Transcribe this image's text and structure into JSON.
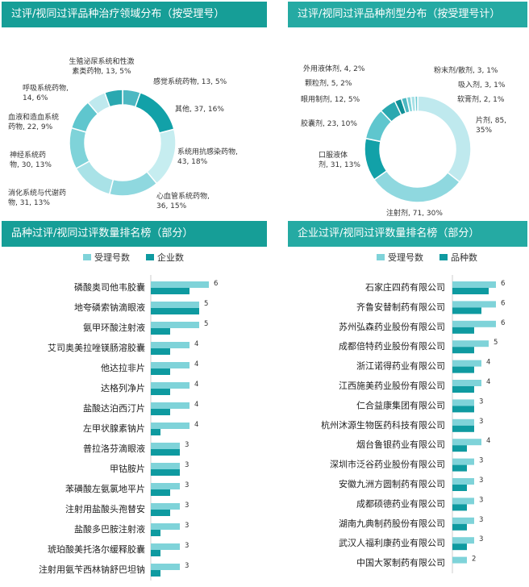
{
  "colors": {
    "header": "#169e97",
    "header_light": "#25aaa3",
    "light": "#7fd3d9",
    "dark": "#0e9aa0"
  },
  "panels": {
    "p1_title": "过评/视同过评品种治疗领域分布（按受理号）",
    "p2_title": "过评/视同过评品种剂型分布（按受理号计）",
    "p3_title": "品种过评/视同过评数量排名榜（部分）",
    "p4_title": "企业过评/视同过评数量排名榜（部分）"
  },
  "chart_data": [
    {
      "type": "pie",
      "variant": "donut",
      "title": "过评/视同过评品种治疗领域分布（按受理号）",
      "slices": [
        {
          "name": "感觉系统药物",
          "value": 13,
          "pct": "5%",
          "label": "感觉系统药物, 13, 5%"
        },
        {
          "name": "其他",
          "value": 37,
          "pct": "16%",
          "label": "其他, 37, 16%"
        },
        {
          "name": "系统用抗感染药物",
          "value": 43,
          "pct": "18%",
          "label": "系统用抗感染药物, 43, 18%"
        },
        {
          "name": "心血管系统药物",
          "value": 36,
          "pct": "15%",
          "label": "心血管系统药物, 36, 15%"
        },
        {
          "name": "消化系统与代谢药物",
          "value": 31,
          "pct": "13%",
          "label": "消化系统与代谢药物, 31, 13%"
        },
        {
          "name": "神经系统药物",
          "value": 30,
          "pct": "13%",
          "label": "神经系统药物, 30, 13%"
        },
        {
          "name": "血液和造血系统药物",
          "value": 22,
          "pct": "9%",
          "label": "血液和造血系统药物, 22, 9%"
        },
        {
          "name": "呼吸系统药物",
          "value": 14,
          "pct": "6%",
          "label": "呼吸系统药物, 14, 6%"
        },
        {
          "name": "生殖泌尿系统和性激素类药物",
          "value": 13,
          "pct": "5%",
          "label": "生殖泌尿系统和性激素类药物, 13, 5%"
        }
      ]
    },
    {
      "type": "pie",
      "variant": "donut",
      "title": "过评/视同过评品种剂型分布（按受理号计）",
      "slices": [
        {
          "name": "片剂",
          "value": 85,
          "pct": "35%",
          "label": "片剂, 85, 35%"
        },
        {
          "name": "注射剂",
          "value": 71,
          "pct": "30%",
          "label": "注射剂, 71, 30%"
        },
        {
          "name": "口服液体剂",
          "value": 31,
          "pct": "13%",
          "label": "口服液体剂, 31, 13%"
        },
        {
          "name": "胶囊剂",
          "value": 23,
          "pct": "10%",
          "label": "胶囊剂, 23, 10%"
        },
        {
          "name": "眼用制剂",
          "value": 12,
          "pct": "5%",
          "label": "眼用制剂, 12, 5%"
        },
        {
          "name": "颗粒剂",
          "value": 5,
          "pct": "2%",
          "label": "颗粒剂, 5, 2%"
        },
        {
          "name": "外用液体剂",
          "value": 4,
          "pct": "2%",
          "label": "外用液体剂, 4, 2%"
        },
        {
          "name": "粉末剂/散剂",
          "value": 3,
          "pct": "1%",
          "label": "粉末剂/散剂, 3, 1%"
        },
        {
          "name": "吸入剂",
          "value": 3,
          "pct": "1%",
          "label": "吸入剂, 3, 1%"
        },
        {
          "name": "软膏剂",
          "value": 2,
          "pct": "1%",
          "label": "软膏剂, 2, 1%"
        }
      ]
    },
    {
      "type": "bar",
      "orientation": "horizontal",
      "title": "品种过评/视同过评数量排名榜（部分）",
      "categories": [
        "磷酸奥司他韦胶囊",
        "地夸磷索钠滴眼液",
        "氨甲环酸注射液",
        "艾司奥美拉唑镁肠溶胶囊",
        "他达拉非片",
        "达格列净片",
        "盐酸达泊西汀片",
        "左甲状腺素钠片",
        "普拉洛芬滴眼液",
        "甲钴胺片",
        "苯磺酸左氨氯地平片",
        "注射用盐酸头孢替安",
        "盐酸多巴胺注射液",
        "琥珀酸美托洛尔缓释胶囊",
        "注射用氨苄西林钠舒巴坦钠"
      ],
      "series": [
        {
          "name": "受理号数",
          "values": [
            6,
            5,
            5,
            4,
            4,
            4,
            4,
            4,
            3,
            3,
            3,
            3,
            3,
            3,
            3
          ]
        },
        {
          "name": "企业数",
          "values": [
            4,
            5,
            2,
            2,
            2,
            2,
            2,
            1,
            3,
            3,
            2,
            2,
            1,
            1,
            1
          ]
        }
      ],
      "data_labels": "受理号数",
      "legend": "top"
    },
    {
      "type": "bar",
      "orientation": "horizontal",
      "title": "企业过评/视同过评数量排名榜（部分）",
      "categories": [
        "石家庄四药有限公司",
        "齐鲁安替制药有限公司",
        "苏州弘森药业股份有限公司",
        "成都倍特药业股份有限公司",
        "浙江诺得药业有限公司",
        "江西施美药业股份有限公司",
        "仁合益康集团有限公司",
        "杭州沐源生物医药科技有限公司",
        "烟台鲁银药业有限公司",
        "深圳市泛谷药业股份有限公司",
        "安徽九洲方圆制药有限公司",
        "成都硕德药业有限公司",
        "湖南九典制药股份有限公司",
        "武汉人福利康药业有限公司",
        "中国大冢制药有限公司"
      ],
      "series": [
        {
          "name": "受理号数",
          "values": [
            6,
            6,
            6,
            5,
            4,
            4,
            3,
            3,
            4,
            3,
            3,
            3,
            3,
            3,
            2
          ]
        },
        {
          "name": "品种数",
          "values": [
            5,
            4,
            3,
            3,
            3,
            3,
            3,
            3,
            2,
            2,
            2,
            2,
            2,
            2,
            0
          ]
        }
      ],
      "data_labels": "受理号数",
      "legend": "top"
    }
  ]
}
